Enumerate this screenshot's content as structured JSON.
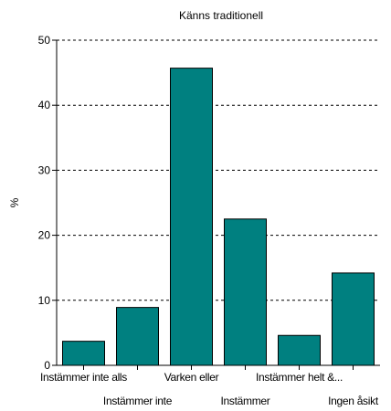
{
  "chart_data": {
    "type": "bar",
    "title": "Känns traditionell",
    "xlabel": "",
    "ylabel": "%",
    "ylim": [
      0,
      50
    ],
    "yticks": [
      0,
      10,
      20,
      30,
      40,
      50
    ],
    "grid": "dashed horizontal",
    "bar_color": "#008080",
    "categories": [
      "Instämmer inte alls",
      "Instämmer inte",
      "Varken eller",
      "Instämmer",
      "Instämmer helt &...",
      "Ingen åsikt"
    ],
    "values": [
      3.7,
      8.9,
      45.7,
      22.5,
      4.6,
      14.2
    ]
  }
}
